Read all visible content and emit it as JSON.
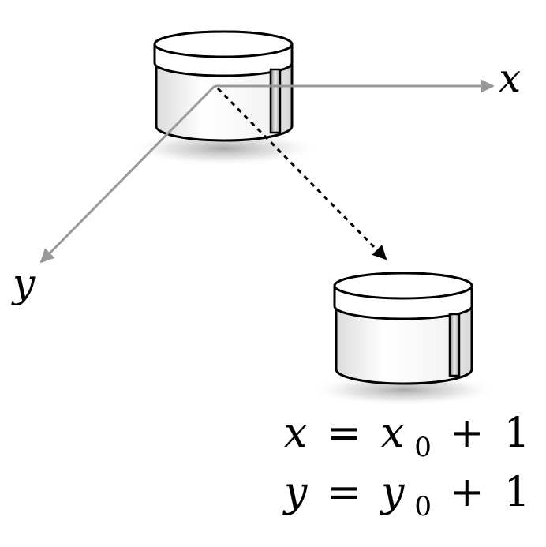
{
  "axes": {
    "x_label": "x",
    "y_label": "y"
  },
  "equations": {
    "line1": {
      "lhs": "x",
      "equals": "=",
      "var": "x",
      "subscript": "0",
      "plus": "+",
      "constant": "1"
    },
    "line2": {
      "lhs": "y",
      "equals": "=",
      "var": "y",
      "subscript": "0",
      "plus": "+",
      "constant": "1"
    }
  },
  "colors": {
    "axis": "#999999",
    "outline": "#000000",
    "body_fill": "#ffffff",
    "shadow": "#b0b0b0"
  },
  "icons": {
    "start_object": "cylinder-robot-icon",
    "end_object": "cylinder-robot-icon"
  }
}
